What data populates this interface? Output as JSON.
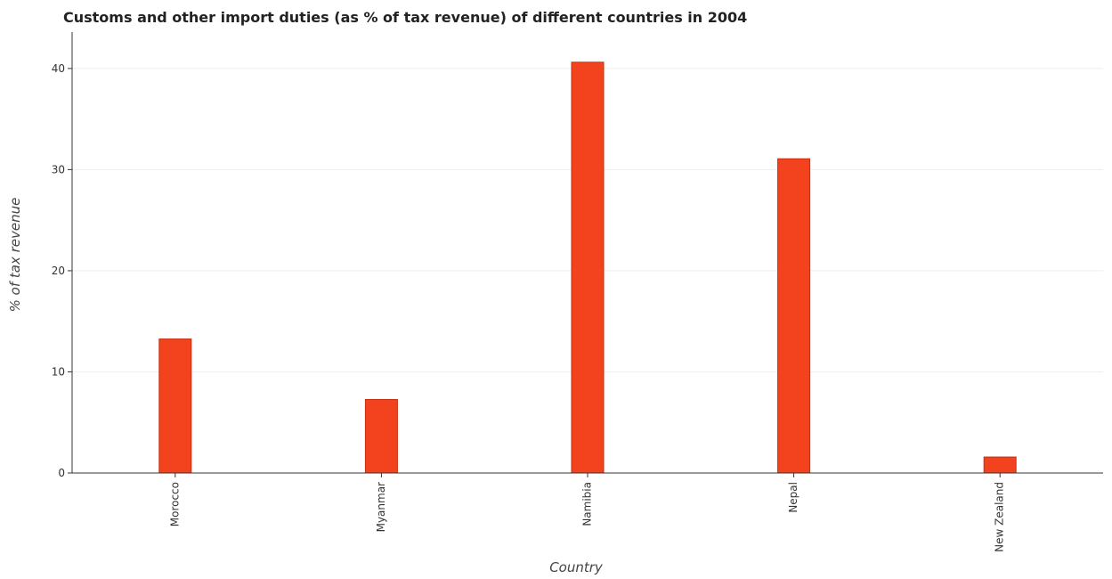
{
  "chart_data": {
    "type": "bar",
    "title": "Customs and other import duties (as % of tax revenue) of different countries in 2004",
    "xlabel": "Country",
    "ylabel": "% of tax revenue",
    "categories": [
      "Morocco",
      "Myanmar",
      "Namibia",
      "Nepal",
      "New Zealand"
    ],
    "values": [
      13.25,
      7.27,
      40.62,
      31.07,
      1.58
    ],
    "ylim": [
      0,
      43.6
    ],
    "yticks": [
      0,
      10,
      20,
      30,
      40
    ],
    "grid": true,
    "bar_color": "#f2431e"
  }
}
